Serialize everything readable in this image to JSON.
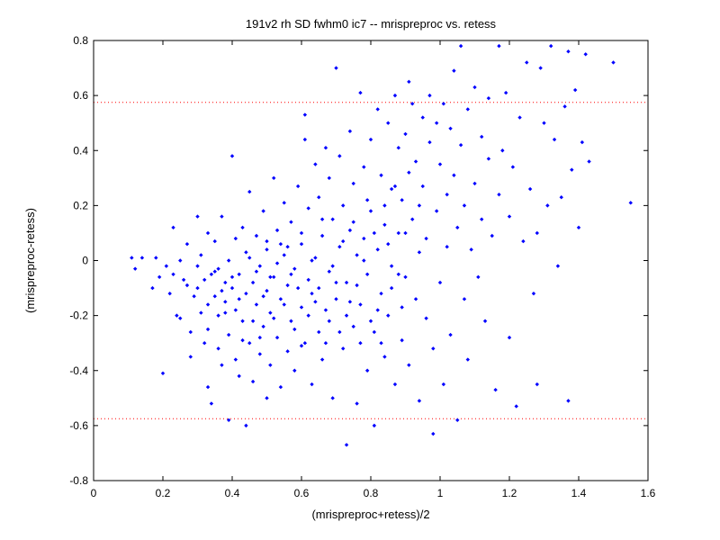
{
  "chart_data": {
    "type": "scatter",
    "title": "191v2 rh SD fwhm0 ic7 -- mrispreproc vs. retess",
    "xlabel": "(mrispreproc+retess)/2",
    "ylabel": "(mrispreproc-retess)",
    "xlim": [
      0,
      1.6
    ],
    "ylim": [
      -0.8,
      0.8
    ],
    "xticks": [
      0,
      0.2,
      0.4,
      0.6,
      0.8,
      1,
      1.2,
      1.4,
      1.6
    ],
    "yticks": [
      -0.8,
      -0.6,
      -0.4,
      -0.2,
      0,
      0.2,
      0.4,
      0.6,
      0.8
    ],
    "xtick_labels": [
      "0",
      "0.2",
      "0.4",
      "0.6",
      "0.8",
      "1",
      "1.2",
      "1.4",
      "1.6"
    ],
    "ytick_labels": [
      "-0.8",
      "-0.6",
      "-0.4",
      "-0.2",
      "0",
      "0.2",
      "0.4",
      "0.6",
      "0.8"
    ],
    "grid": false,
    "reference_lines": [
      0.575,
      -0.575
    ],
    "colors": {
      "points": "#0000ff",
      "reference_lines": "#ff0000",
      "axes": "#000000"
    },
    "series": [
      {
        "points": [
          [
            0.11,
            0.01
          ],
          [
            0.12,
            -0.03
          ],
          [
            0.14,
            0.01
          ],
          [
            0.17,
            -0.1
          ],
          [
            0.18,
            0.01
          ],
          [
            0.19,
            -0.06
          ],
          [
            0.2,
            -0.41
          ],
          [
            0.21,
            -0.02
          ],
          [
            0.22,
            -0.12
          ],
          [
            0.23,
            -0.05
          ],
          [
            0.23,
            0.12
          ],
          [
            0.24,
            -0.2
          ],
          [
            0.25,
            0.0
          ],
          [
            0.25,
            -0.21
          ],
          [
            0.26,
            -0.07
          ],
          [
            0.27,
            -0.09
          ],
          [
            0.27,
            0.06
          ],
          [
            0.28,
            -0.26
          ],
          [
            0.28,
            -0.35
          ],
          [
            0.29,
            -0.13
          ],
          [
            0.3,
            -0.02
          ],
          [
            0.3,
            0.16
          ],
          [
            0.31,
            -0.19
          ],
          [
            0.31,
            0.02
          ],
          [
            0.32,
            -0.3
          ],
          [
            0.32,
            -0.07
          ],
          [
            0.33,
            -0.46
          ],
          [
            0.33,
            -0.25
          ],
          [
            0.33,
            0.1
          ],
          [
            0.34,
            -0.52
          ],
          [
            0.34,
            -0.05
          ],
          [
            0.35,
            -0.13
          ],
          [
            0.35,
            0.07
          ],
          [
            0.36,
            -0.32
          ],
          [
            0.36,
            -0.03
          ],
          [
            0.36,
            -0.2
          ],
          [
            0.37,
            0.16
          ],
          [
            0.37,
            -0.38
          ],
          [
            0.38,
            -0.08
          ],
          [
            0.38,
            -0.15
          ],
          [
            0.39,
            -0.58
          ],
          [
            0.39,
            0.0
          ],
          [
            0.39,
            -0.27
          ],
          [
            0.4,
            0.38
          ],
          [
            0.4,
            -0.1
          ],
          [
            0.41,
            -0.36
          ],
          [
            0.41,
            -0.18
          ],
          [
            0.41,
            0.08
          ],
          [
            0.42,
            -0.42
          ],
          [
            0.42,
            -0.05
          ],
          [
            0.43,
            -0.22
          ],
          [
            0.43,
            0.12
          ],
          [
            0.44,
            -0.6
          ],
          [
            0.44,
            -0.12
          ],
          [
            0.45,
            -0.3
          ],
          [
            0.45,
            0.01
          ],
          [
            0.45,
            0.25
          ],
          [
            0.46,
            -0.08
          ],
          [
            0.46,
            -0.44
          ],
          [
            0.47,
            -0.16
          ],
          [
            0.47,
            0.09
          ],
          [
            0.48,
            -0.34
          ],
          [
            0.48,
            -0.02
          ],
          [
            0.49,
            -0.24
          ],
          [
            0.49,
            0.18
          ],
          [
            0.5,
            -0.5
          ],
          [
            0.5,
            -0.11
          ],
          [
            0.5,
            0.04
          ],
          [
            0.51,
            -0.38
          ],
          [
            0.51,
            -0.19
          ],
          [
            0.52,
            0.3
          ],
          [
            0.52,
            -0.06
          ],
          [
            0.53,
            -0.28
          ],
          [
            0.53,
            0.11
          ],
          [
            0.54,
            -0.46
          ],
          [
            0.54,
            -0.14
          ],
          [
            0.55,
            0.02
          ],
          [
            0.55,
            0.21
          ],
          [
            0.56,
            -0.33
          ],
          [
            0.56,
            -0.09
          ],
          [
            0.57,
            -0.22
          ],
          [
            0.57,
            0.14
          ],
          [
            0.58,
            -0.4
          ],
          [
            0.58,
            -0.03
          ],
          [
            0.59,
            0.27
          ],
          [
            0.6,
            -0.17
          ],
          [
            0.6,
            0.06
          ],
          [
            0.61,
            -0.3
          ],
          [
            0.61,
            0.44
          ],
          [
            0.61,
            0.53
          ],
          [
            0.62,
            -0.07
          ],
          [
            0.62,
            0.19
          ],
          [
            0.63,
            -0.45
          ],
          [
            0.63,
            -0.12
          ],
          [
            0.64,
            0.35
          ],
          [
            0.64,
            0.01
          ],
          [
            0.65,
            -0.26
          ],
          [
            0.65,
            0.23
          ],
          [
            0.66,
            -0.36
          ],
          [
            0.66,
            0.09
          ],
          [
            0.67,
            0.41
          ],
          [
            0.67,
            -0.18
          ],
          [
            0.68,
            -0.04
          ],
          [
            0.68,
            0.3
          ],
          [
            0.69,
            -0.5
          ],
          [
            0.69,
            0.15
          ],
          [
            0.7,
            0.7
          ],
          [
            0.7,
            -0.14
          ],
          [
            0.71,
            0.05
          ],
          [
            0.71,
            0.38
          ],
          [
            0.72,
            -0.32
          ],
          [
            0.72,
            0.2
          ],
          [
            0.73,
            -0.67
          ],
          [
            0.73,
            -0.08
          ],
          [
            0.74,
            0.47
          ],
          [
            0.74,
            0.11
          ],
          [
            0.75,
            -0.24
          ],
          [
            0.75,
            0.28
          ],
          [
            0.76,
            -0.52
          ],
          [
            0.76,
            0.02
          ],
          [
            0.77,
            0.61
          ],
          [
            0.77,
            -0.16
          ],
          [
            0.78,
            0.34
          ],
          [
            0.78,
            0.08
          ],
          [
            0.79,
            -0.4
          ],
          [
            0.79,
            -0.05
          ],
          [
            0.8,
            0.44
          ],
          [
            0.8,
            0.18
          ],
          [
            0.81,
            -0.6
          ],
          [
            0.81,
            -0.26
          ],
          [
            0.82,
            0.55
          ],
          [
            0.82,
            0.04
          ],
          [
            0.83,
            -0.12
          ],
          [
            0.83,
            0.31
          ],
          [
            0.84,
            -0.35
          ],
          [
            0.84,
            0.13
          ],
          [
            0.85,
            0.5
          ],
          [
            0.85,
            -0.2
          ],
          [
            0.86,
            0.26
          ],
          [
            0.86,
            -0.02
          ],
          [
            0.87,
            0.6
          ],
          [
            0.87,
            -0.45
          ],
          [
            0.88,
            0.41
          ],
          [
            0.88,
            0.1
          ],
          [
            0.89,
            -0.29
          ],
          [
            0.89,
            0.22
          ],
          [
            0.9,
            0.46
          ],
          [
            0.9,
            -0.06
          ],
          [
            0.91,
            0.65
          ],
          [
            0.91,
            -0.38
          ],
          [
            0.92,
            0.15
          ],
          [
            0.92,
            0.57
          ],
          [
            0.93,
            -0.14
          ],
          [
            0.93,
            0.36
          ],
          [
            0.94,
            0.03
          ],
          [
            0.94,
            -0.51
          ],
          [
            0.95,
            0.52
          ],
          [
            0.95,
            0.27
          ],
          [
            0.96,
            -0.21
          ],
          [
            0.96,
            0.08
          ],
          [
            0.97,
            0.6
          ],
          [
            0.97,
            0.43
          ],
          [
            0.98,
            -0.63
          ],
          [
            0.98,
            -0.32
          ],
          [
            0.99,
            0.18
          ],
          [
            0.99,
            0.5
          ],
          [
            1.0,
            -0.08
          ],
          [
            1.0,
            0.35
          ],
          [
            1.01,
            0.57
          ],
          [
            1.01,
            -0.45
          ],
          [
            1.02,
            0.05
          ],
          [
            1.02,
            0.24
          ],
          [
            1.03,
            0.48
          ],
          [
            1.03,
            -0.27
          ],
          [
            1.04,
            0.31
          ],
          [
            1.04,
            0.69
          ],
          [
            1.05,
            0.12
          ],
          [
            1.05,
            -0.58
          ],
          [
            1.06,
            0.78
          ],
          [
            1.06,
            0.42
          ],
          [
            1.07,
            -0.14
          ],
          [
            1.07,
            0.2
          ],
          [
            1.08,
            0.55
          ],
          [
            1.08,
            -0.36
          ],
          [
            1.09,
            0.04
          ],
          [
            1.1,
            0.63
          ],
          [
            1.1,
            0.28
          ],
          [
            1.11,
            -0.06
          ],
          [
            1.12,
            0.45
          ],
          [
            1.12,
            0.15
          ],
          [
            1.13,
            -0.22
          ],
          [
            1.14,
            0.59
          ],
          [
            1.14,
            0.37
          ],
          [
            1.15,
            0.09
          ],
          [
            1.16,
            -0.47
          ],
          [
            1.17,
            0.78
          ],
          [
            1.17,
            0.24
          ],
          [
            1.18,
            0.4
          ],
          [
            1.19,
            0.61
          ],
          [
            1.2,
            -0.28
          ],
          [
            1.2,
            0.16
          ],
          [
            1.21,
            0.34
          ],
          [
            1.22,
            -0.53
          ],
          [
            1.23,
            0.52
          ],
          [
            1.24,
            0.07
          ],
          [
            1.25,
            0.72
          ],
          [
            1.26,
            0.26
          ],
          [
            1.27,
            -0.12
          ],
          [
            1.28,
            0.1
          ],
          [
            1.28,
            -0.45
          ],
          [
            1.29,
            0.7
          ],
          [
            1.3,
            0.5
          ],
          [
            1.31,
            0.2
          ],
          [
            1.32,
            0.78
          ],
          [
            1.33,
            0.44
          ],
          [
            1.34,
            -0.02
          ],
          [
            1.35,
            0.23
          ],
          [
            1.36,
            0.56
          ],
          [
            1.37,
            0.76
          ],
          [
            1.37,
            -0.51
          ],
          [
            1.38,
            0.33
          ],
          [
            1.39,
            0.62
          ],
          [
            1.4,
            0.12
          ],
          [
            1.41,
            0.43
          ],
          [
            1.42,
            0.75
          ],
          [
            1.43,
            0.36
          ],
          [
            1.5,
            0.72
          ],
          [
            1.55,
            0.21
          ],
          [
            0.35,
            -0.04
          ],
          [
            0.37,
            -0.11
          ],
          [
            0.4,
            -0.06
          ],
          [
            0.42,
            -0.14
          ],
          [
            0.44,
            0.03
          ],
          [
            0.46,
            -0.22
          ],
          [
            0.47,
            -0.04
          ],
          [
            0.49,
            -0.13
          ],
          [
            0.5,
            0.07
          ],
          [
            0.52,
            -0.21
          ],
          [
            0.53,
            -0.01
          ],
          [
            0.55,
            -0.16
          ],
          [
            0.56,
            0.05
          ],
          [
            0.58,
            -0.25
          ],
          [
            0.59,
            -0.1
          ],
          [
            0.6,
            0.1
          ],
          [
            0.62,
            -0.2
          ],
          [
            0.63,
            0.0
          ],
          [
            0.65,
            -0.1
          ],
          [
            0.66,
            0.15
          ],
          [
            0.68,
            -0.22
          ],
          [
            0.69,
            -0.02
          ],
          [
            0.71,
            -0.26
          ],
          [
            0.72,
            0.07
          ],
          [
            0.74,
            -0.15
          ],
          [
            0.75,
            0.14
          ],
          [
            0.77,
            -0.3
          ],
          [
            0.78,
            0.0
          ],
          [
            0.8,
            -0.22
          ],
          [
            0.81,
            0.1
          ],
          [
            0.83,
            -0.3
          ],
          [
            0.84,
            0.2
          ],
          [
            0.86,
            -0.1
          ],
          [
            0.87,
            0.27
          ],
          [
            0.89,
            -0.17
          ],
          [
            0.9,
            0.1
          ],
          [
            0.3,
            -0.1
          ],
          [
            0.33,
            -0.16
          ],
          [
            0.38,
            -0.19
          ],
          [
            0.43,
            -0.29
          ],
          [
            0.48,
            -0.28
          ],
          [
            0.51,
            -0.06
          ],
          [
            0.54,
            0.06
          ],
          [
            0.57,
            -0.05
          ],
          [
            0.6,
            -0.31
          ],
          [
            0.64,
            -0.15
          ],
          [
            0.67,
            -0.3
          ],
          [
            0.7,
            -0.08
          ],
          [
            0.73,
            -0.2
          ],
          [
            0.76,
            -0.09
          ],
          [
            0.79,
            0.22
          ],
          [
            0.82,
            -0.18
          ],
          [
            0.85,
            0.06
          ],
          [
            0.88,
            -0.05
          ],
          [
            0.91,
            0.32
          ],
          [
            0.94,
            0.2
          ]
        ]
      }
    ]
  }
}
